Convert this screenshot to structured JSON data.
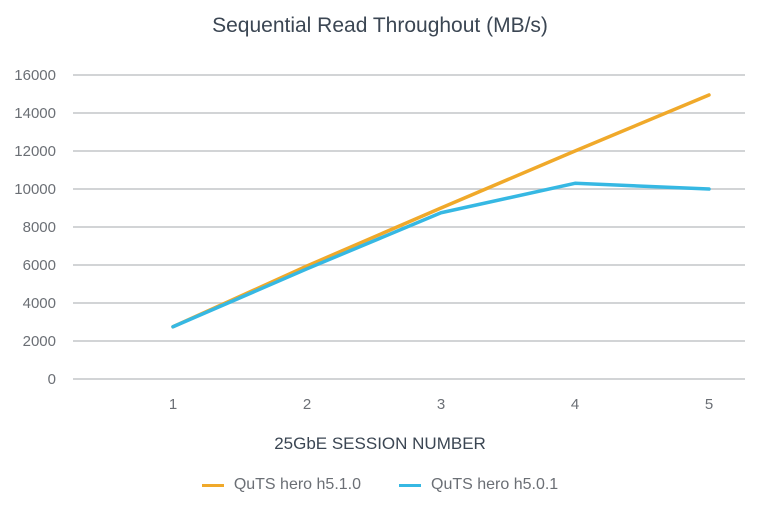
{
  "chart_data": {
    "type": "line",
    "title": "Sequential Read Throughout (MB/s)",
    "xlabel": "25GbE SESSION NUMBER",
    "ylabel": "",
    "categories": [
      "1",
      "2",
      "3",
      "4",
      "5"
    ],
    "ylim": [
      0,
      16000
    ],
    "yticks": [
      0,
      2000,
      4000,
      6000,
      8000,
      10000,
      12000,
      14000,
      16000
    ],
    "grid": true,
    "legend_position": "bottom",
    "series": [
      {
        "name": "QuTS hero h5.1.0",
        "color": "#f0a92a",
        "values": [
          2750,
          5950,
          9000,
          12000,
          14950
        ]
      },
      {
        "name": "QuTS hero h5.0.1",
        "color": "#36b8e3",
        "values": [
          2750,
          5800,
          8750,
          10300,
          10000
        ]
      }
    ]
  }
}
